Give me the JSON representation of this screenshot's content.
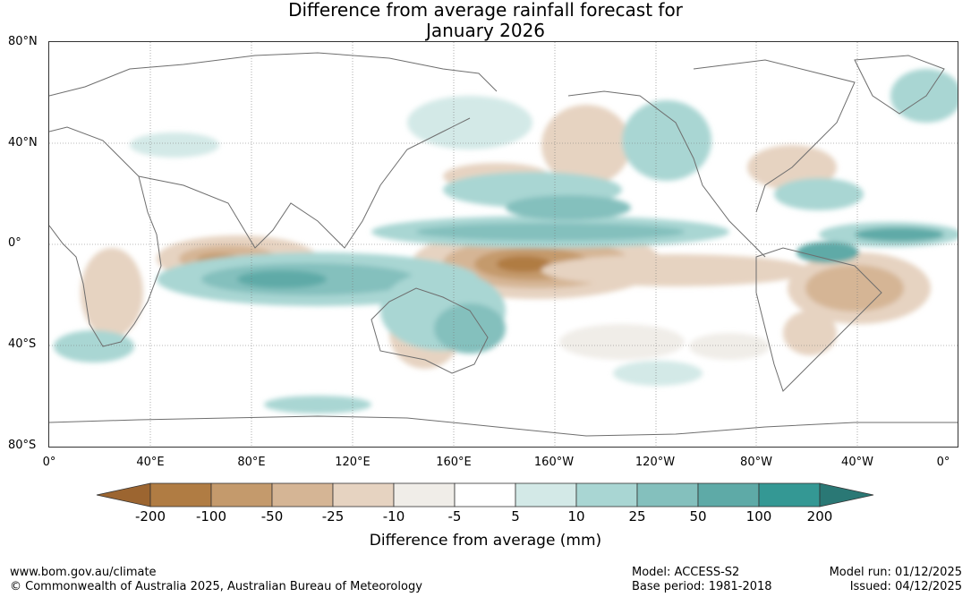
{
  "title_line1": "Difference from average rainfall forecast for",
  "title_line2": "January 2026",
  "lat_labels": [
    "80°N",
    "40°N",
    "0°",
    "40°S",
    "80°S"
  ],
  "lon_labels": [
    "0°",
    "40°E",
    "80°E",
    "120°E",
    "160°E",
    "160°W",
    "120°W",
    "80°W",
    "40°W",
    "0°"
  ],
  "legend": {
    "title": "Difference from average (mm)",
    "ticks": [
      "-200",
      "-100",
      "-50",
      "-25",
      "-10",
      "-5",
      "5",
      "10",
      "25",
      "50",
      "100",
      "200"
    ],
    "colors": [
      "#9c6530",
      "#b07c43",
      "#c49a6c",
      "#d5b595",
      "#e6d3c1",
      "#f0ede8",
      "#ffffff",
      "#d3e9e7",
      "#a9d6d3",
      "#84c0bd",
      "#5eaaa7",
      "#349894",
      "#2a7875"
    ]
  },
  "footer": {
    "url": "www.bom.gov.au/climate",
    "copyright": "© Commonwealth of Australia 2025, Australian Bureau of Meteorology",
    "model": "Model: ACCESS-S2",
    "base_period": "Base period: 1981-2018",
    "model_run": "Model run: 01/12/2025",
    "issued": "Issued: 04/12/2025"
  }
}
